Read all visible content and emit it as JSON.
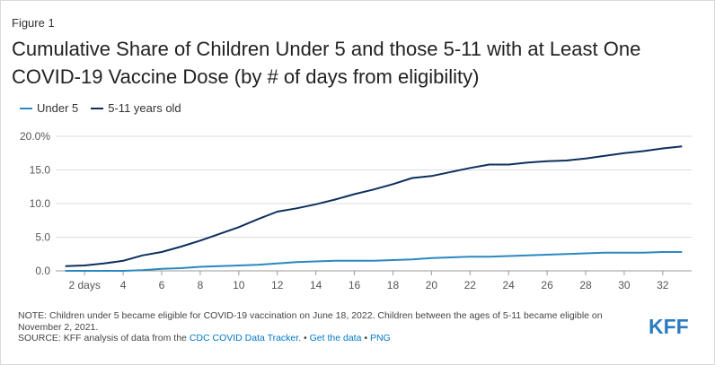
{
  "figure_label": "Figure 1",
  "title": "Cumulative Share of Children Under 5 and those 5-11 with at Least One COVID-19 Vaccine Dose (by # of days from eligibility)",
  "legend": [
    {
      "label": "Under 5",
      "color": "#2a88c0"
    },
    {
      "label": "5-11 years old",
      "color": "#0d2f5e"
    }
  ],
  "notes": {
    "note": "NOTE: Children under 5 became eligible for COVID-19 vaccination on June 18, 2022. Children between the ages of 5-11 became eligible on November 2, 2021.",
    "source_prefix": "SOURCE: KFF analysis of data from the ",
    "source_link": "CDC COVID Data Tracker",
    "source_sep1": ". • ",
    "get_data": "Get the data",
    "source_sep2": " • ",
    "png": "PNG"
  },
  "logo": "KFF",
  "chart_data": {
    "type": "line",
    "xlabel": "",
    "ylabel": "",
    "xlim": [
      0.5,
      33.5
    ],
    "ylim": [
      0,
      20
    ],
    "x_tick_values": [
      2,
      4,
      6,
      8,
      10,
      12,
      14,
      16,
      18,
      20,
      22,
      24,
      26,
      28,
      30,
      32
    ],
    "x_tick_labels": [
      "2 days",
      "4",
      "6",
      "8",
      "10",
      "12",
      "14",
      "16",
      "18",
      "20",
      "22",
      "24",
      "26",
      "28",
      "30",
      "32"
    ],
    "y_tick_values": [
      0,
      5,
      10,
      15,
      20
    ],
    "y_tick_labels": [
      "0.0",
      "5.0",
      "10.0",
      "15.0",
      "20.0%"
    ],
    "grid": true,
    "legend_position": "top-left",
    "x": [
      1,
      2,
      3,
      4,
      5,
      6,
      7,
      8,
      9,
      10,
      11,
      12,
      13,
      14,
      15,
      16,
      17,
      18,
      19,
      20,
      21,
      22,
      23,
      24,
      25,
      26,
      27,
      28,
      29,
      30,
      31,
      32,
      33
    ],
    "series": [
      {
        "name": "Under 5",
        "color": "#2a88c0",
        "values": [
          0.0,
          0.0,
          0.0,
          0.0,
          0.1,
          0.3,
          0.4,
          0.6,
          0.7,
          0.8,
          0.9,
          1.1,
          1.3,
          1.4,
          1.5,
          1.5,
          1.5,
          1.6,
          1.7,
          1.9,
          2.0,
          2.1,
          2.1,
          2.2,
          2.3,
          2.4,
          2.5,
          2.6,
          2.7,
          2.7,
          2.7,
          2.8,
          2.8
        ]
      },
      {
        "name": "5-11 years old",
        "color": "#0d2f5e",
        "values": [
          0.7,
          0.8,
          1.1,
          1.5,
          2.3,
          2.8,
          3.6,
          4.5,
          5.5,
          6.5,
          7.7,
          8.8,
          9.3,
          9.9,
          10.6,
          11.4,
          12.1,
          12.9,
          13.8,
          14.1,
          14.7,
          15.3,
          15.8,
          15.8,
          16.1,
          16.3,
          16.4,
          16.7,
          17.1,
          17.5,
          17.8,
          18.2,
          18.5
        ]
      }
    ]
  }
}
